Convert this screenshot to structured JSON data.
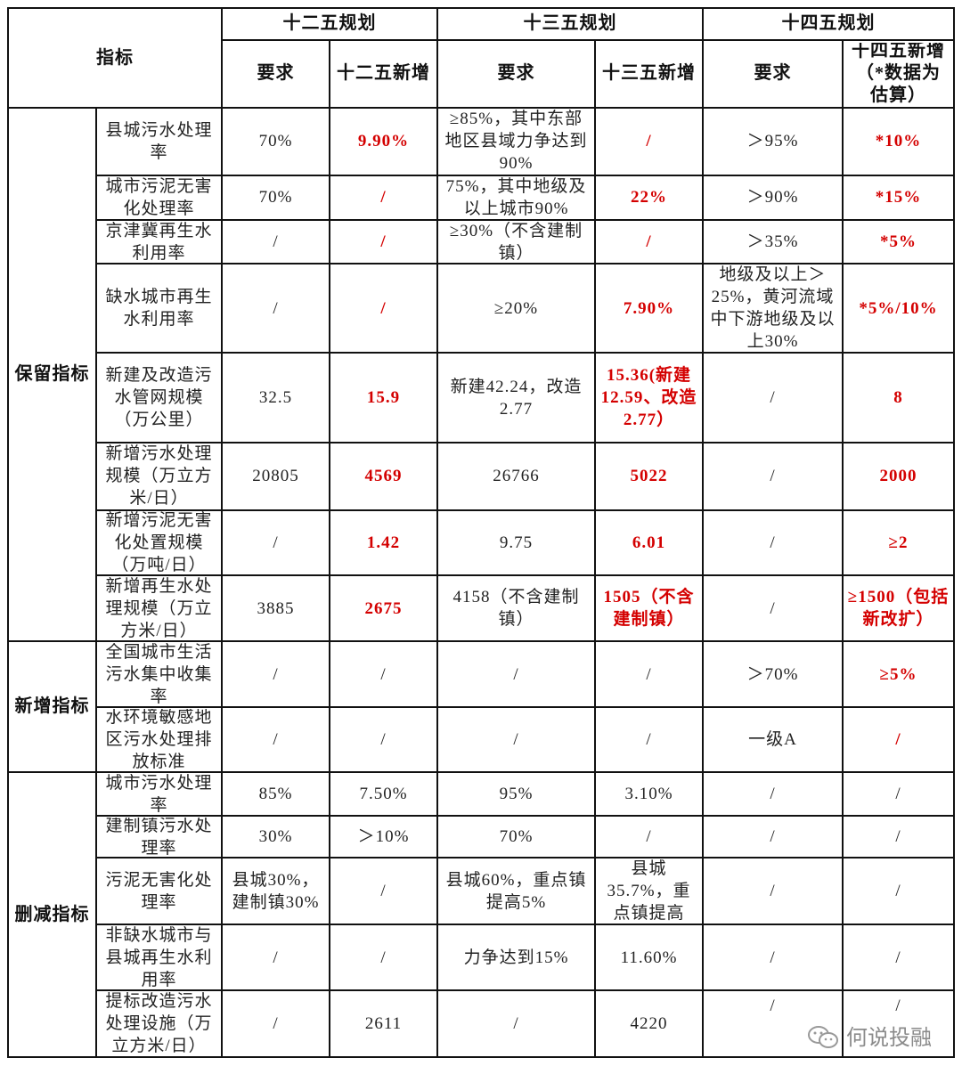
{
  "header": {
    "indicator": "指标",
    "periods": [
      "十二五规划",
      "十三五规划",
      "十四五规划"
    ],
    "sub": [
      "要求",
      "十二五新增",
      "要求",
      "十三五新增",
      "要求",
      "十四五新增（*数据为估算）"
    ]
  },
  "groups": [
    {
      "label": "保留指标",
      "rows": [
        {
          "name": "县城污水处理率",
          "cells": [
            "70%",
            "9.90%",
            "≥85%，其中东部地区县域力争达到90%",
            "/",
            "＞95%",
            "*10%"
          ]
        },
        {
          "name": "城市污泥无害化处理率",
          "cells": [
            "70%",
            "/",
            "75%，其中地级及以上城市90%",
            "22%",
            "＞90%",
            "*15%"
          ]
        },
        {
          "name": "京津冀再生水利用率",
          "cells": [
            "/",
            "/",
            "≥30%（不含建制镇）",
            "/",
            "＞35%",
            "*5%"
          ]
        },
        {
          "name": "缺水城市再生水利用率",
          "cells": [
            "/",
            "/",
            "≥20%",
            "7.90%",
            "地级及以上＞25%，黄河流域中下游地级及以上30%",
            "*5%/10%"
          ]
        },
        {
          "name": "新建及改造污水管网规模（万公里）",
          "cells": [
            "32.5",
            "15.9",
            "新建42.24，改造2.77",
            "15.36(新建12.59、改造2.77）",
            "/",
            "8"
          ]
        },
        {
          "name": "新增污水处理规模（万立方米/日）",
          "cells": [
            "20805",
            "4569",
            "26766",
            "5022",
            "/",
            "2000"
          ]
        },
        {
          "name": "新增污泥无害化处置规模（万吨/日）",
          "cells": [
            "/",
            "1.42",
            "9.75",
            "6.01",
            "/",
            "≥2"
          ]
        },
        {
          "name": "新增再生水处理规模（万立方米/日）",
          "cells": [
            "3885",
            "2675",
            "4158（不含建制镇）",
            "1505（不含建制镇）",
            "/",
            "≥1500（包括新改扩）"
          ]
        }
      ]
    },
    {
      "label": "新增指标",
      "rows": [
        {
          "name": "全国城市生活污水集中收集率",
          "cells": [
            "/",
            "/",
            "/",
            "/",
            "＞70%",
            "≥5%"
          ]
        },
        {
          "name": "水环境敏感地区污水处理排放标准",
          "cells": [
            "/",
            "/",
            "/",
            "/",
            "一级A",
            "/"
          ]
        }
      ]
    },
    {
      "label": "删减指标",
      "rows": [
        {
          "name": "城市污水处理率",
          "cells": [
            "85%",
            "7.50%",
            "95%",
            "3.10%",
            "/",
            "/"
          ]
        },
        {
          "name": "建制镇污水处理率",
          "cells": [
            "30%",
            "＞10%",
            "70%",
            "/",
            "/",
            "/"
          ]
        },
        {
          "name": "污泥无害化处理率",
          "cells": [
            "县城30%，建制镇30%",
            "/",
            "县城60%，重点镇提高5%",
            "县城35.7%，重点镇提高",
            "/",
            "/"
          ]
        },
        {
          "name": "非缺水城市与县城再生水利用率",
          "cells": [
            "/",
            "/",
            "力争达到15%",
            "11.60%",
            "/",
            "/"
          ]
        },
        {
          "name": "提标改造污水处理设施（万立方米/日）",
          "cells": [
            "/",
            "2611",
            "/",
            "4220",
            "/",
            "/"
          ]
        }
      ]
    }
  ],
  "watermark": {
    "text": "何说投融",
    "icon": "wechat-icon"
  },
  "colors": {
    "highlight": "#d40000",
    "border": "#111111"
  }
}
